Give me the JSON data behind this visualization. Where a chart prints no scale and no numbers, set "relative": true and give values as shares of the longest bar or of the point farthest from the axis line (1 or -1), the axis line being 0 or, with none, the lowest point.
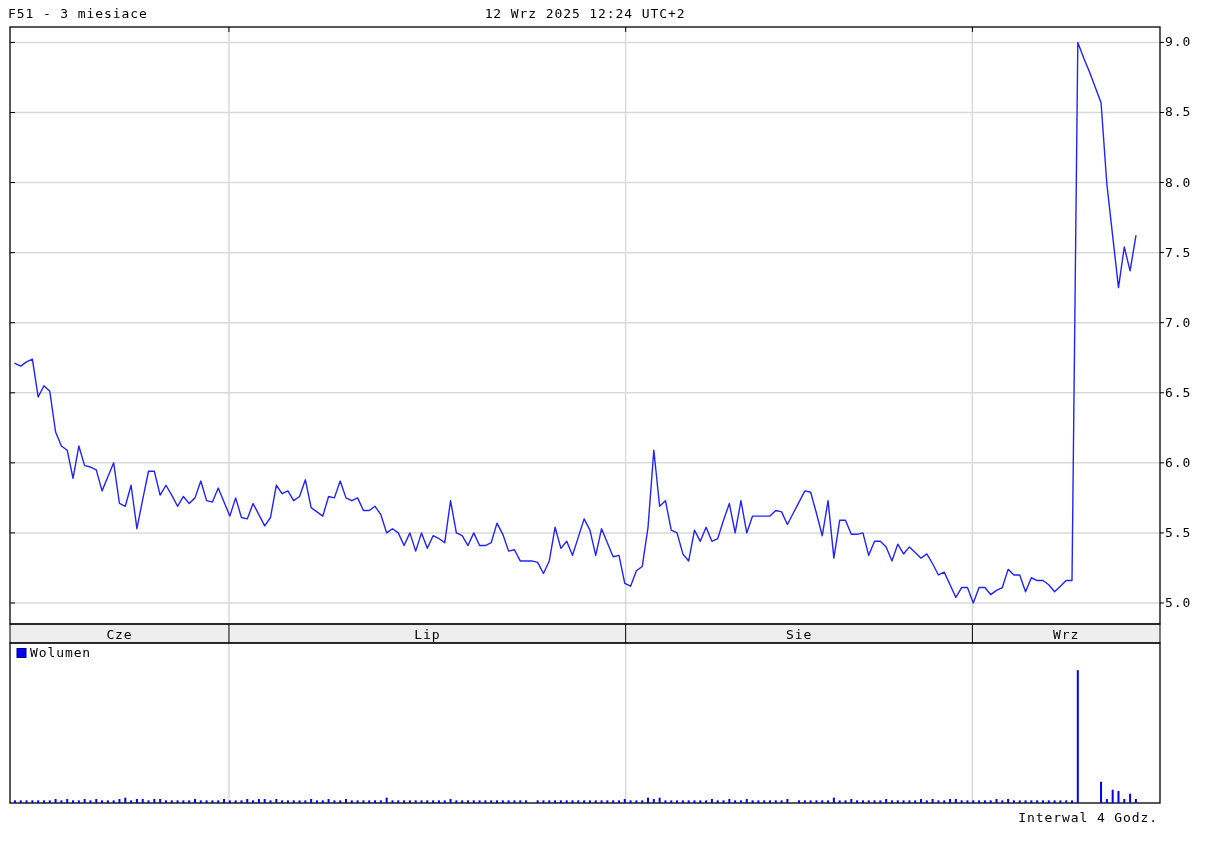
{
  "chart_data": [
    {
      "type": "line",
      "title": "F51 - 3 miesiace",
      "subtitle": "12 Wrz 2025 12:24 UTC+2",
      "color": "#2222ff",
      "categories": [
        null,
        null,
        null,
        null,
        null,
        null,
        null,
        null,
        null,
        null,
        null,
        null,
        null,
        null,
        null,
        null,
        null,
        null,
        "Cze",
        null,
        null,
        null,
        null,
        null,
        null,
        null,
        null,
        null,
        null,
        null,
        null,
        null,
        null,
        null,
        null,
        null,
        null,
        null,
        null,
        null,
        null,
        null,
        null,
        null,
        null,
        null,
        null,
        null,
        null,
        null,
        null,
        null,
        null,
        null,
        null,
        null,
        null,
        null,
        null,
        null,
        null,
        null,
        null,
        null,
        null,
        null,
        null,
        null,
        null,
        null,
        null,
        "Lip",
        null,
        null,
        null,
        null,
        null,
        null,
        null,
        null,
        null,
        null,
        null,
        null,
        null,
        null,
        null,
        null,
        null,
        null,
        null,
        null,
        null,
        null,
        null,
        null,
        null,
        null,
        null,
        null,
        null,
        null,
        null,
        null,
        null,
        null,
        null,
        null,
        null,
        null,
        null,
        null,
        null,
        null,
        null,
        null,
        null,
        null,
        null,
        null,
        null,
        null,
        null,
        null,
        null,
        null,
        null,
        null,
        null,
        null,
        null,
        null,
        null,
        null,
        null,
        "Sie",
        null,
        null,
        null,
        null,
        null,
        null,
        null,
        null,
        null,
        null,
        null,
        null,
        null,
        null,
        null,
        null,
        null,
        null,
        null,
        null,
        null,
        null,
        null,
        null,
        null,
        null,
        null,
        null,
        null,
        null,
        null,
        null,
        null,
        null,
        null,
        null,
        null,
        null,
        null,
        null,
        null,
        null,
        null,
        null,
        null,
        "Wrz",
        null,
        null,
        null,
        null,
        null,
        null,
        null,
        null,
        null,
        null,
        null,
        null,
        null,
        null,
        null,
        null
      ],
      "values": [
        6.71,
        6.69,
        6.72,
        6.74,
        6.47,
        6.55,
        6.51,
        6.22,
        6.12,
        6.09,
        5.89,
        6.12,
        5.98,
        5.97,
        5.95,
        5.8,
        5.9,
        6.0,
        5.71,
        5.69,
        5.84,
        5.53,
        5.74,
        5.94,
        5.94,
        5.77,
        5.84,
        5.77,
        5.69,
        5.76,
        5.71,
        5.75,
        5.87,
        5.73,
        5.72,
        5.82,
        5.72,
        5.62,
        5.75,
        5.61,
        5.6,
        5.71,
        5.63,
        5.55,
        5.61,
        5.84,
        5.78,
        5.8,
        5.73,
        5.76,
        5.88,
        5.68,
        5.65,
        5.62,
        5.76,
        5.75,
        5.87,
        5.75,
        5.73,
        5.75,
        5.66,
        5.66,
        5.69,
        5.63,
        5.5,
        5.53,
        5.5,
        5.41,
        5.5,
        5.37,
        5.5,
        5.39,
        5.48,
        5.46,
        5.43,
        5.73,
        5.5,
        5.48,
        5.41,
        5.5,
        5.41,
        5.41,
        5.43,
        5.57,
        5.49,
        5.37,
        5.38,
        5.3,
        5.3,
        5.3,
        5.29,
        5.21,
        5.3,
        5.54,
        5.39,
        5.44,
        5.34,
        5.47,
        5.6,
        5.52,
        5.34,
        5.53,
        5.43,
        5.33,
        5.34,
        5.14,
        5.12,
        5.23,
        5.26,
        5.54,
        6.09,
        5.69,
        5.73,
        5.52,
        5.5,
        5.35,
        5.3,
        5.52,
        5.44,
        5.54,
        5.44,
        5.46,
        5.59,
        5.71,
        5.5,
        5.73,
        5.5,
        5.62,
        5.62,
        5.62,
        5.62,
        5.66,
        5.65,
        5.56,
        5.64,
        5.72,
        5.8,
        5.79,
        5.64,
        5.48,
        5.73,
        5.32,
        5.59,
        5.59,
        5.49,
        5.49,
        5.5,
        5.34,
        5.44,
        5.44,
        5.4,
        5.3,
        5.42,
        5.35,
        5.4,
        5.36,
        5.32,
        5.35,
        5.28,
        5.2,
        5.22,
        5.13,
        5.04,
        5.11,
        5.11,
        5.0,
        5.11,
        5.11,
        5.06,
        5.09,
        5.11,
        5.24,
        5.2,
        5.2,
        5.08,
        5.18,
        5.16,
        5.16,
        5.13,
        5.08,
        5.12,
        5.16,
        5.16,
        9.0,
        8.89,
        8.79,
        8.68,
        8.57,
        7.99,
        7.62,
        7.25,
        7.54,
        7.37,
        7.62,
        null,
        null,
        null,
        null
      ],
      "ylim": [
        4.85,
        9.11
      ],
      "yticks": [
        {
          "value": 5,
          "label": "5.0"
        },
        {
          "value": 5.5,
          "label": "5.5"
        },
        {
          "value": 6,
          "label": "6.0"
        },
        {
          "value": 6.5,
          "label": "6.5"
        },
        {
          "value": 7,
          "label": "7.0"
        },
        {
          "value": 7.5,
          "label": "7.5"
        },
        {
          "value": 8,
          "label": "8.0"
        },
        {
          "value": 8.5,
          "label": "8.5"
        },
        {
          "value": 9,
          "label": "9.0"
        }
      ],
      "grid": "y"
    },
    {
      "type": "bar",
      "relative": true,
      "categories": [
        null,
        null,
        null,
        null,
        null,
        null,
        null,
        null,
        null,
        null,
        null,
        null,
        null,
        null,
        null,
        null,
        null,
        null,
        null,
        null,
        null,
        null,
        null,
        null,
        null,
        null,
        null,
        null,
        null,
        null,
        null,
        null,
        null,
        null,
        null,
        null,
        null,
        null,
        null,
        null,
        null,
        null,
        null,
        null,
        null,
        null,
        null,
        null,
        null,
        null,
        null,
        null,
        null,
        null,
        null,
        null,
        null,
        null,
        null,
        null,
        null,
        null,
        null,
        null,
        null,
        null,
        null,
        null,
        null,
        null,
        null,
        null,
        null,
        null,
        null,
        null,
        null,
        null,
        null,
        null,
        null,
        null,
        null,
        null,
        null,
        null,
        null,
        null,
        null,
        null,
        null,
        null,
        null,
        null,
        null,
        null,
        null,
        null,
        null,
        null,
        null,
        null,
        null,
        null,
        null,
        null,
        null,
        null,
        null,
        null,
        null,
        null,
        null,
        null,
        null,
        null,
        null,
        null,
        null,
        null,
        null,
        null,
        null,
        null,
        null,
        null,
        null,
        null,
        null,
        null,
        null,
        null,
        null,
        null,
        null,
        null,
        null,
        null,
        null,
        null,
        null,
        null,
        null,
        null,
        null,
        null,
        null,
        null,
        null,
        null,
        null,
        null,
        null,
        null,
        null,
        null,
        null,
        null,
        null,
        null,
        null,
        null,
        null,
        null,
        null,
        null,
        null,
        null,
        null,
        null,
        null,
        null,
        null,
        null,
        null,
        null,
        null,
        null,
        null,
        null,
        null,
        null,
        null,
        null,
        null,
        null,
        null,
        null,
        null,
        null,
        null,
        null,
        null,
        null,
        null,
        null,
        null,
        null
      ],
      "series": [
        {
          "name": "Wolumen",
          "color": "#0000ff",
          "values": [
            0.02,
            0.02,
            0.02,
            0.02,
            0.02,
            0.02,
            0.02,
            0.03,
            0.02,
            0.03,
            0.02,
            0.02,
            0.03,
            0.02,
            0.03,
            0.02,
            0.02,
            0.02,
            0.03,
            0.04,
            0.02,
            0.03,
            0.03,
            0.02,
            0.03,
            0.03,
            0.02,
            0.02,
            0.02,
            0.02,
            0.02,
            0.03,
            0.02,
            0.02,
            0.02,
            0.02,
            0.03,
            0.02,
            0.02,
            0.02,
            0.03,
            0.02,
            0.03,
            0.03,
            0.02,
            0.03,
            0.02,
            0.02,
            0.02,
            0.02,
            0.02,
            0.03,
            0.02,
            0.02,
            0.03,
            0.02,
            0.02,
            0.03,
            0.02,
            0.02,
            0.02,
            0.02,
            0.02,
            0.02,
            0.04,
            0.02,
            0.02,
            0.02,
            0.02,
            0.02,
            0.02,
            0.02,
            0.02,
            0.02,
            0.02,
            0.03,
            0.02,
            0.02,
            0.02,
            0.02,
            0.02,
            0.02,
            0.02,
            0.02,
            0.02,
            0.02,
            0.02,
            0.02,
            0.02,
            null,
            0.02,
            0.02,
            0.02,
            0.02,
            0.02,
            0.02,
            0.02,
            0.02,
            0.02,
            0.02,
            0.02,
            0.02,
            0.02,
            0.02,
            0.02,
            0.03,
            0.02,
            0.02,
            0.02,
            0.04,
            0.03,
            0.04,
            0.02,
            0.02,
            0.02,
            0.02,
            0.02,
            0.02,
            0.02,
            0.02,
            0.03,
            0.02,
            0.02,
            0.03,
            0.02,
            0.02,
            0.03,
            0.02,
            0.02,
            0.02,
            0.02,
            0.02,
            0.02,
            0.03,
            null,
            0.02,
            0.02,
            0.02,
            0.02,
            0.02,
            0.02,
            0.04,
            0.02,
            0.02,
            0.03,
            0.02,
            0.02,
            0.02,
            0.02,
            0.02,
            0.03,
            0.02,
            0.02,
            0.02,
            0.02,
            0.02,
            0.03,
            0.02,
            0.03,
            0.02,
            0.02,
            0.03,
            0.03,
            0.02,
            0.02,
            0.02,
            0.02,
            0.02,
            0.02,
            0.03,
            0.02,
            0.03,
            0.02,
            0.02,
            0.02,
            0.02,
            0.02,
            0.02,
            0.02,
            0.02,
            0.02,
            0.02,
            0.02,
            1,
            null,
            null,
            null,
            0.16,
            0.03,
            0.1,
            0.09,
            0.03,
            0.07,
            0.03,
            null,
            null,
            null,
            null
          ]
        }
      ],
      "legend": "top left",
      "annotations": [
        "Interwal 4 Godz."
      ]
    }
  ]
}
